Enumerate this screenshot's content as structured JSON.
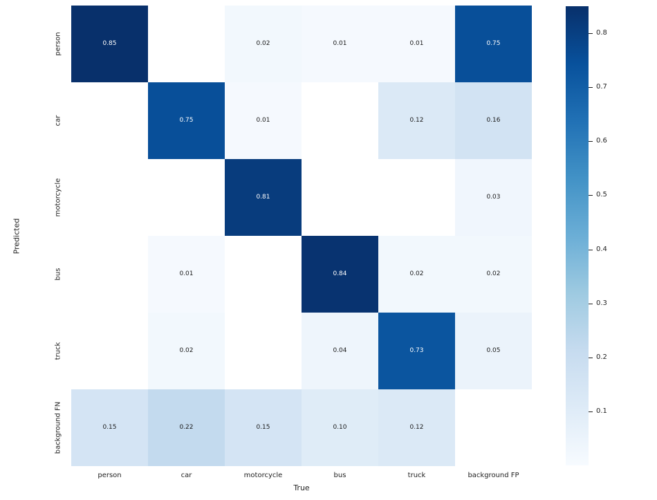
{
  "chart_data": {
    "type": "heatmap",
    "xlabel": "True",
    "ylabel": "Predicted",
    "x_categories": [
      "person",
      "car",
      "motorcycle",
      "bus",
      "truck",
      "background FP"
    ],
    "y_categories": [
      "person",
      "car",
      "motorcycle",
      "bus",
      "truck",
      "background FN"
    ],
    "values": [
      [
        0.85,
        null,
        0.02,
        0.01,
        0.01,
        0.75
      ],
      [
        null,
        0.75,
        0.01,
        null,
        0.12,
        0.16
      ],
      [
        null,
        null,
        0.81,
        null,
        null,
        0.03
      ],
      [
        null,
        0.01,
        null,
        0.84,
        0.02,
        0.02
      ],
      [
        null,
        0.02,
        null,
        0.04,
        0.73,
        0.05
      ],
      [
        0.15,
        0.22,
        0.15,
        0.1,
        0.12,
        null
      ]
    ],
    "value_decimals": 2,
    "vmin": 0,
    "vmax": 0.85,
    "colormap": "Blues",
    "colormap_rgb": [
      [
        247,
        251,
        255
      ],
      [
        222,
        235,
        247
      ],
      [
        198,
        219,
        239
      ],
      [
        158,
        202,
        225
      ],
      [
        107,
        174,
        214
      ],
      [
        66,
        146,
        198
      ],
      [
        33,
        113,
        181
      ],
      [
        8,
        81,
        156
      ],
      [
        8,
        48,
        107
      ]
    ],
    "null_cell_color": "#ffffff",
    "annotation_color_dark": "#1a1a1a",
    "annotation_color_light": "#ffffff",
    "grid": false,
    "legend_position": "right-colorbar",
    "colorbar_ticks": [
      0.8,
      0.7,
      0.6,
      0.5,
      0.4,
      0.3,
      0.2,
      0.1
    ]
  },
  "colors": {
    "background": "#ffffff",
    "heatmap_max": "#08306b",
    "heatmap_min": "#f7fbff",
    "text": "#222222"
  }
}
